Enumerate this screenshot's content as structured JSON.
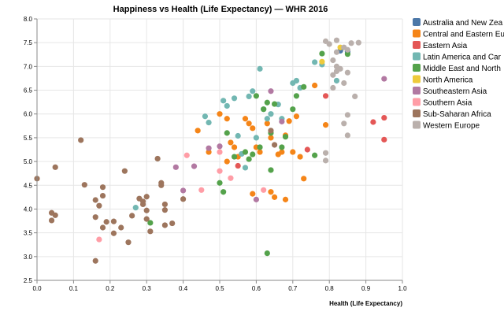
{
  "chart_data": {
    "type": "scatter",
    "title": "Happiness vs Health (Life Expectancy) — WHR 2016",
    "xlabel": "Health (Life Expectancy)",
    "ylabel": "",
    "xlim": [
      0.0,
      1.0
    ],
    "ylim": [
      2.5,
      8.0
    ],
    "x_ticks": [
      "0.0",
      "0.1",
      "0.2",
      "0.3",
      "0.4",
      "0.5",
      "0.6",
      "0.7",
      "0.8",
      "0.9",
      "1.0"
    ],
    "y_ticks": [
      "2.5",
      "3.0",
      "3.5",
      "4.0",
      "4.5",
      "5.0",
      "5.5",
      "6.0",
      "6.5",
      "7.0",
      "7.5",
      "8.0"
    ],
    "legend_position": "right",
    "series": [
      {
        "name": "Australia and New Zealand",
        "label": "Australia and New Zea",
        "color": "#4c78a8",
        "points": [
          [
            0.83,
            7.33
          ],
          [
            0.85,
            7.31
          ]
        ]
      },
      {
        "name": "Central and Eastern Europe",
        "label": "Central and Eastern Eu",
        "color": "#f58518",
        "points": [
          [
            0.44,
            5.65
          ],
          [
            0.47,
            5.2
          ],
          [
            0.5,
            6.0
          ],
          [
            0.52,
            5.9
          ],
          [
            0.53,
            5.4
          ],
          [
            0.54,
            5.3
          ],
          [
            0.55,
            5.1
          ],
          [
            0.57,
            5.9
          ],
          [
            0.58,
            5.8
          ],
          [
            0.59,
            5.7
          ],
          [
            0.6,
            5.3
          ],
          [
            0.61,
            5.2
          ],
          [
            0.63,
            5.8
          ],
          [
            0.64,
            5.5
          ],
          [
            0.64,
            4.36
          ],
          [
            0.65,
            4.25
          ],
          [
            0.67,
            5.2
          ],
          [
            0.68,
            5.55
          ],
          [
            0.69,
            5.85
          ],
          [
            0.7,
            5.2
          ],
          [
            0.71,
            5.95
          ],
          [
            0.72,
            5.1
          ],
          [
            0.73,
            4.64
          ],
          [
            0.76,
            6.6
          ],
          [
            0.79,
            5.77
          ],
          [
            0.52,
            5.0
          ],
          [
            0.59,
            4.32
          ],
          [
            0.66,
            5.15
          ],
          [
            0.68,
            4.2
          ]
        ]
      },
      {
        "name": "Eastern Asia",
        "label": "Eastern Asia",
        "color": "#e45756",
        "points": [
          [
            0.55,
            4.91
          ],
          [
            0.74,
            5.25
          ],
          [
            0.79,
            6.38
          ],
          [
            0.92,
            5.83
          ],
          [
            0.95,
            5.92
          ],
          [
            0.95,
            5.46
          ]
        ]
      },
      {
        "name": "Latin America and Caribbean",
        "label": "Latin America and Car",
        "color": "#72b7b2",
        "points": [
          [
            0.27,
            4.03
          ],
          [
            0.46,
            5.95
          ],
          [
            0.47,
            5.82
          ],
          [
            0.51,
            6.28
          ],
          [
            0.52,
            6.17
          ],
          [
            0.54,
            6.33
          ],
          [
            0.55,
            5.54
          ],
          [
            0.56,
            5.16
          ],
          [
            0.57,
            4.87
          ],
          [
            0.58,
            6.37
          ],
          [
            0.59,
            6.48
          ],
          [
            0.6,
            5.5
          ],
          [
            0.61,
            6.95
          ],
          [
            0.62,
            6.1
          ],
          [
            0.63,
            5.9
          ],
          [
            0.64,
            6.0
          ],
          [
            0.66,
            6.2
          ],
          [
            0.67,
            5.9
          ],
          [
            0.7,
            6.65
          ],
          [
            0.71,
            6.7
          ],
          [
            0.72,
            6.55
          ],
          [
            0.76,
            7.09
          ],
          [
            0.78,
            7.04
          ],
          [
            0.82,
            6.7
          ]
        ]
      },
      {
        "name": "Middle East and Northern Africa",
        "label": "Middle East and North",
        "color": "#54a24b",
        "points": [
          [
            0.31,
            3.71
          ],
          [
            0.5,
            4.55
          ],
          [
            0.51,
            4.36
          ],
          [
            0.52,
            5.6
          ],
          [
            0.54,
            5.1
          ],
          [
            0.57,
            5.2
          ],
          [
            0.58,
            5.05
          ],
          [
            0.59,
            5.15
          ],
          [
            0.6,
            6.38
          ],
          [
            0.61,
            5.3
          ],
          [
            0.62,
            6.1
          ],
          [
            0.63,
            6.24
          ],
          [
            0.63,
            3.07
          ],
          [
            0.64,
            5.6
          ],
          [
            0.64,
            4.82
          ],
          [
            0.65,
            6.21
          ],
          [
            0.67,
            5.3
          ],
          [
            0.68,
            5.52
          ],
          [
            0.7,
            6.1
          ],
          [
            0.71,
            6.38
          ],
          [
            0.73,
            6.57
          ],
          [
            0.76,
            5.13
          ],
          [
            0.78,
            7.27
          ],
          [
            0.85,
            7.26
          ]
        ]
      },
      {
        "name": "North America",
        "label": "North America",
        "color": "#eeca3b",
        "points": [
          [
            0.78,
            7.1
          ],
          [
            0.83,
            7.4
          ]
        ]
      },
      {
        "name": "Southeastern Asia",
        "label": "Southeastern Asia",
        "color": "#b279a2",
        "points": [
          [
            0.38,
            4.88
          ],
          [
            0.4,
            4.39
          ],
          [
            0.43,
            4.9
          ],
          [
            0.47,
            5.28
          ],
          [
            0.5,
            5.32
          ],
          [
            0.6,
            4.2
          ],
          [
            0.64,
            6.48
          ],
          [
            0.67,
            5.84
          ],
          [
            0.95,
            6.74
          ]
        ]
      },
      {
        "name": "Southern Asia",
        "label": "Southern Asia",
        "color": "#ff9da6",
        "points": [
          [
            0.17,
            3.36
          ],
          [
            0.41,
            5.13
          ],
          [
            0.45,
            4.4
          ],
          [
            0.5,
            5.2
          ],
          [
            0.5,
            4.8
          ],
          [
            0.53,
            4.65
          ],
          [
            0.62,
            4.4
          ]
        ]
      },
      {
        "name": "Sub-Saharan Africa",
        "label": "Sub-Saharan Africa",
        "color": "#9d755d",
        "points": [
          [
            0.0,
            4.64
          ],
          [
            0.04,
            3.76
          ],
          [
            0.04,
            3.92
          ],
          [
            0.05,
            3.87
          ],
          [
            0.05,
            4.88
          ],
          [
            0.12,
            5.45
          ],
          [
            0.13,
            4.51
          ],
          [
            0.16,
            2.91
          ],
          [
            0.16,
            3.83
          ],
          [
            0.16,
            4.19
          ],
          [
            0.17,
            4.07
          ],
          [
            0.18,
            4.46
          ],
          [
            0.18,
            4.28
          ],
          [
            0.18,
            3.61
          ],
          [
            0.19,
            3.73
          ],
          [
            0.21,
            3.49
          ],
          [
            0.21,
            3.74
          ],
          [
            0.23,
            3.61
          ],
          [
            0.24,
            4.8
          ],
          [
            0.25,
            3.3
          ],
          [
            0.26,
            3.86
          ],
          [
            0.28,
            4.22
          ],
          [
            0.29,
            4.16
          ],
          [
            0.29,
            4.1
          ],
          [
            0.3,
            4.26
          ],
          [
            0.3,
            3.97
          ],
          [
            0.3,
            3.79
          ],
          [
            0.31,
            3.53
          ],
          [
            0.33,
            5.06
          ],
          [
            0.34,
            4.55
          ],
          [
            0.34,
            4.5
          ],
          [
            0.35,
            4.1
          ],
          [
            0.35,
            3.98
          ],
          [
            0.35,
            3.66
          ],
          [
            0.37,
            3.7
          ],
          [
            0.4,
            4.21
          ],
          [
            0.64,
            5.65
          ],
          [
            0.65,
            5.35
          ]
        ]
      },
      {
        "name": "Western Europe",
        "label": "Western Europe",
        "color": "#bab0ac",
        "points": [
          [
            0.79,
            5.02
          ],
          [
            0.79,
            5.18
          ],
          [
            0.81,
            6.55
          ],
          [
            0.81,
            6.82
          ],
          [
            0.82,
            7.0
          ],
          [
            0.82,
            7.55
          ],
          [
            0.84,
            6.65
          ],
          [
            0.84,
            5.8
          ],
          [
            0.85,
            5.55
          ],
          [
            0.85,
            5.98
          ],
          [
            0.85,
            6.87
          ],
          [
            0.87,
            6.37
          ],
          [
            0.86,
            7.49
          ],
          [
            0.88,
            7.5
          ],
          [
            0.79,
            7.53
          ],
          [
            0.8,
            7.47
          ],
          [
            0.81,
            7.13
          ],
          [
            0.82,
            6.9
          ],
          [
            0.84,
            7.4
          ],
          [
            0.85,
            7.35
          ],
          [
            0.83,
            6.95
          ],
          [
            0.82,
            7.3
          ]
        ]
      }
    ]
  }
}
